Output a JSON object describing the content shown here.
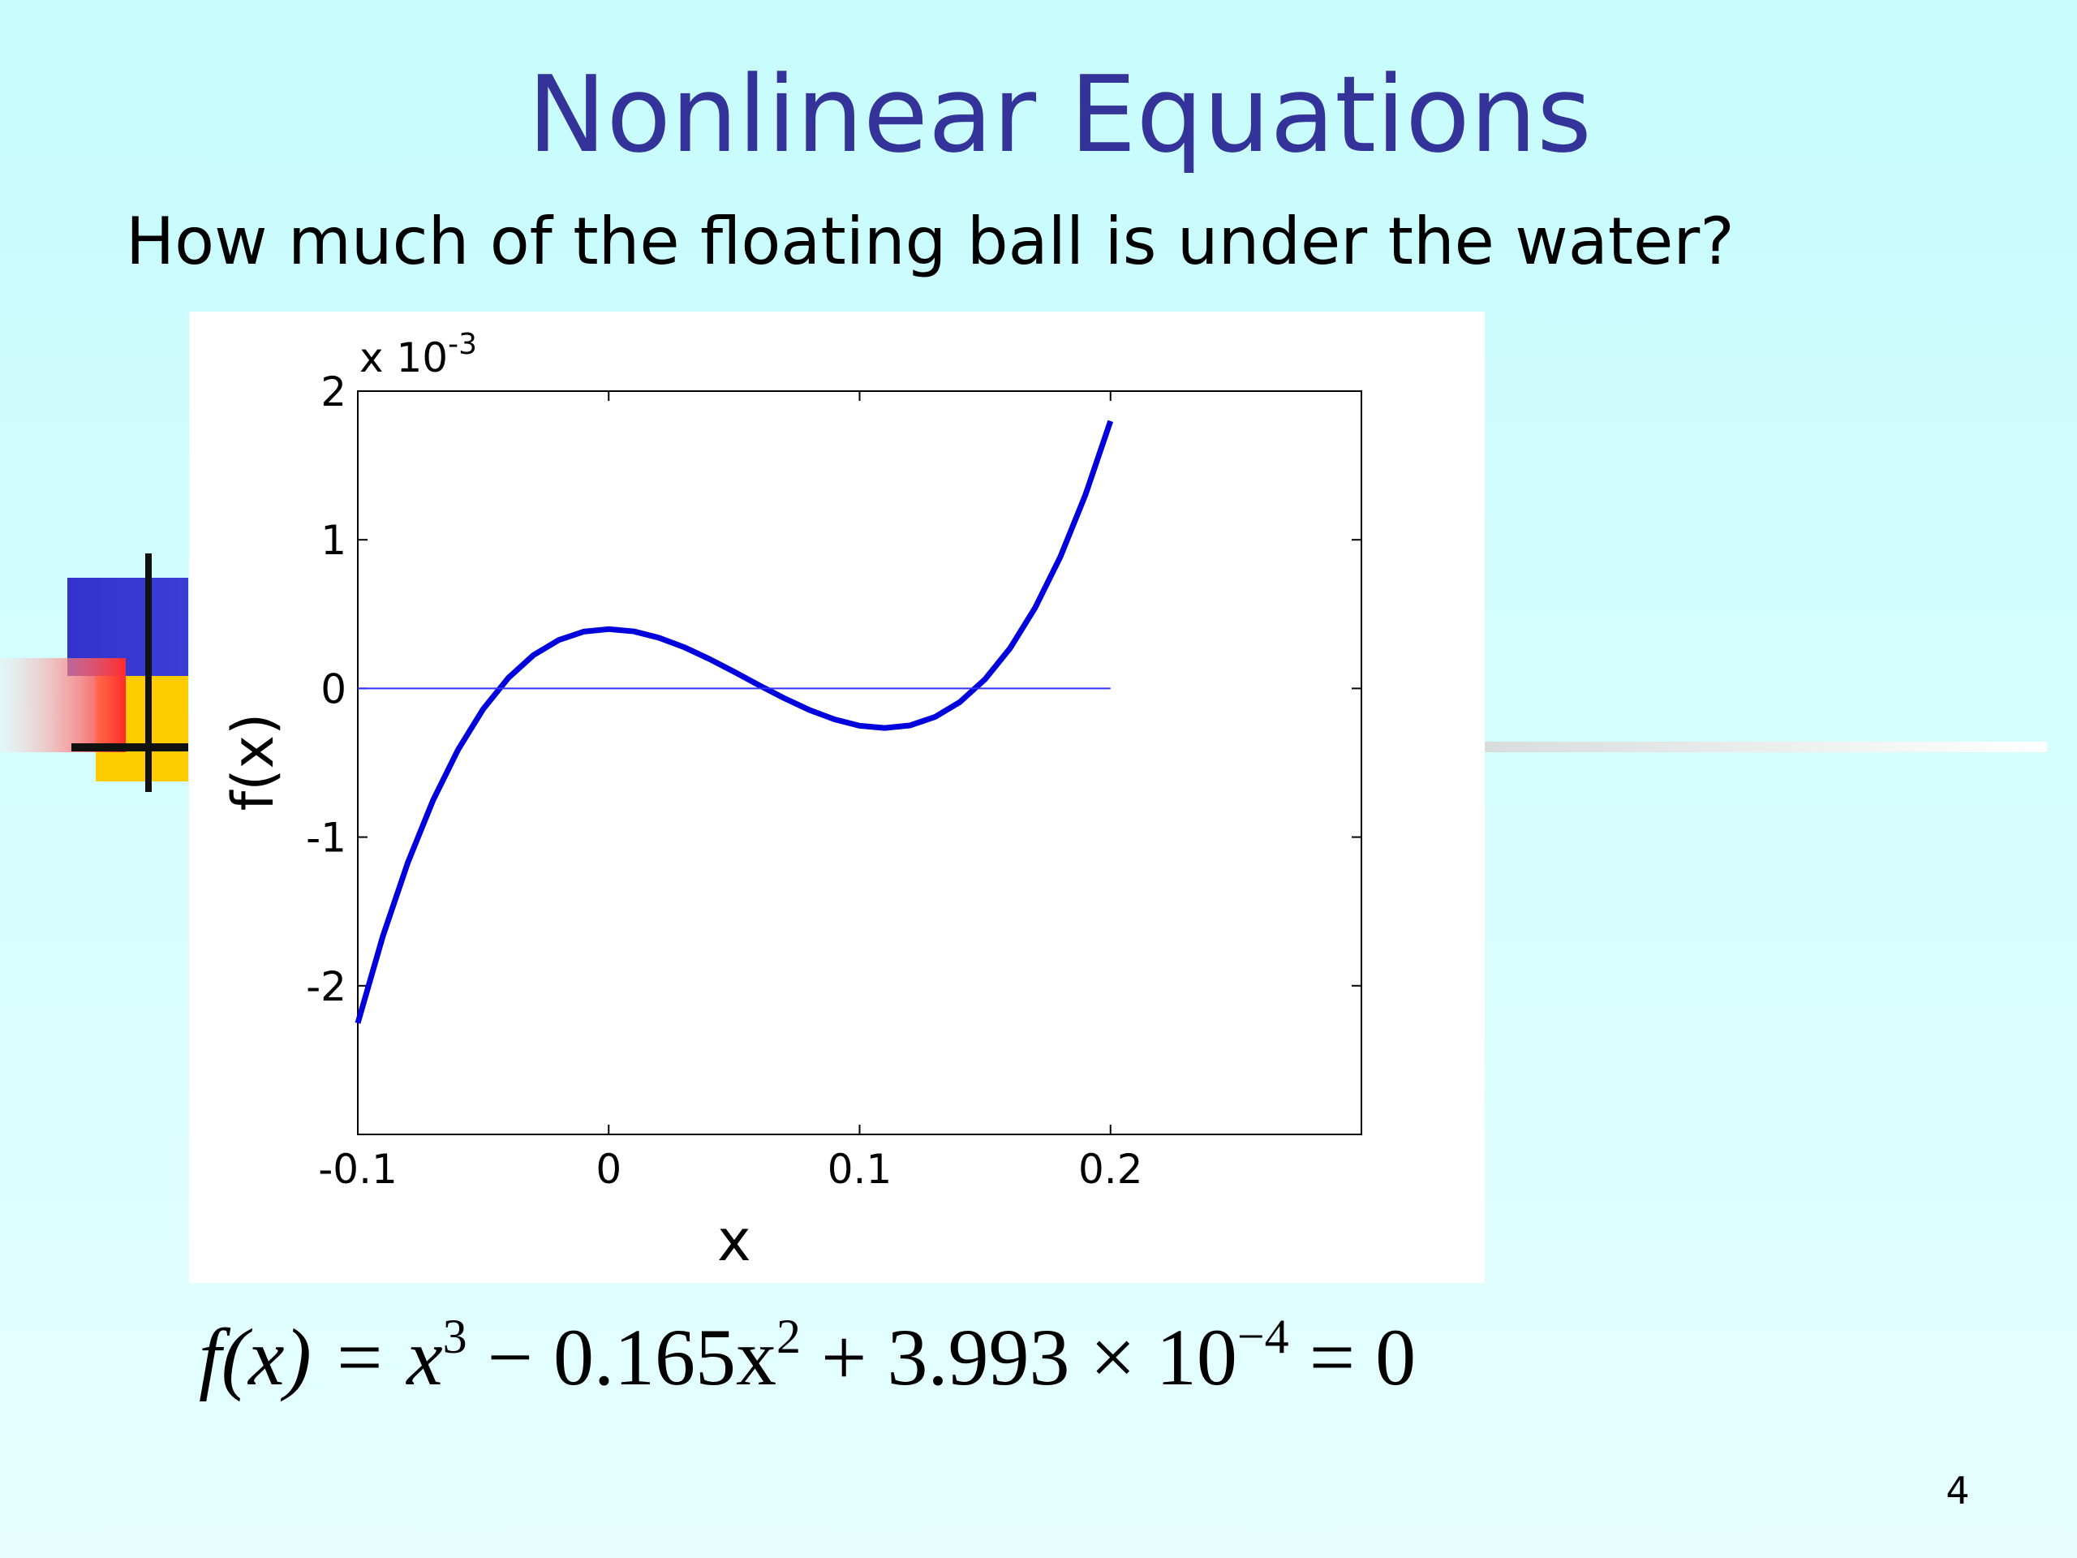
{
  "slide": {
    "title": "Nonlinear Equations",
    "subtitle": "How much of the floating ball is under the water?",
    "page_number": "4",
    "equation": [
      {
        "text": "f(x) = x"
      },
      {
        "text": "3",
        "sup": true
      },
      {
        "text": " − 0.165x"
      },
      {
        "text": "2",
        "sup": true
      },
      {
        "text": " + 3.993 × 10"
      },
      {
        "text": "−4",
        "sup": true
      },
      {
        "text": " = 0"
      }
    ]
  },
  "chart_data": {
    "type": "line",
    "xlabel": "x",
    "ylabel": "f(x)",
    "y_scale_label": {
      "base": "x 10",
      "exponent": "-3"
    },
    "xlim": [
      -0.1,
      0.3
    ],
    "xticks": [
      -0.1,
      0,
      0.1,
      0.2
    ],
    "ylim": [
      -3,
      2
    ],
    "yticks": [
      -2,
      -1,
      0,
      1,
      2
    ],
    "grid": false,
    "series": [
      {
        "color": "#0000dd",
        "width": 7,
        "x": [
          -0.1,
          -0.09,
          -0.08,
          -0.07,
          -0.06,
          -0.05,
          -0.04,
          -0.03,
          -0.02,
          -0.01,
          0,
          0.01,
          0.02,
          0.03,
          0.04,
          0.05,
          0.06,
          0.07,
          0.08,
          0.09,
          0.1,
          0.11,
          0.12,
          0.13,
          0.14,
          0.15,
          0.16,
          0.17,
          0.18,
          0.19,
          0.2
        ],
        "values": [
          -2.251,
          -1.666,
          -1.169,
          -0.752,
          -0.411,
          -0.138,
          0.071,
          0.224,
          0.325,
          0.382,
          0.399,
          0.384,
          0.341,
          0.278,
          0.199,
          0.112,
          0.021,
          -0.066,
          -0.145,
          -0.208,
          -0.251,
          -0.266,
          -0.249,
          -0.192,
          -0.091,
          0.062,
          0.271,
          0.544,
          0.885,
          1.302,
          1.799
        ]
      },
      {
        "color": "#3333ff",
        "width": 2,
        "x": [
          -0.1,
          0.2
        ],
        "values": [
          0,
          0
        ]
      }
    ]
  }
}
